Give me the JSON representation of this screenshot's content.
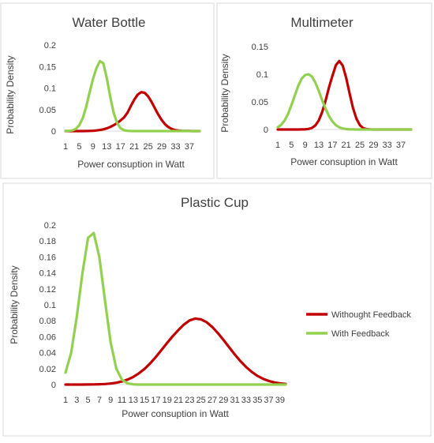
{
  "colors": {
    "without_feedback": "#c00000",
    "with_feedback": "#92d050",
    "axis": "#d9d9d9",
    "text": "#404040"
  },
  "legend": {
    "without_feedback": "Withought Feedback",
    "with_feedback": "With Feedback"
  },
  "chart_data": [
    {
      "type": "line",
      "title": "Water Bottle",
      "xlabel": "Power consuption in Watt",
      "ylabel": "Probability Density",
      "ylim": [
        0,
        0.2
      ],
      "yticks": [
        "0",
        "0.05",
        "0.1",
        "0.15",
        "0.2"
      ],
      "x_tick_labels": [
        "1",
        "5",
        "9",
        "13",
        "17",
        "21",
        "25",
        "29",
        "33",
        "37"
      ],
      "x": [
        1,
        2,
        3,
        4,
        5,
        6,
        7,
        8,
        9,
        10,
        11,
        12,
        13,
        14,
        15,
        16,
        17,
        18,
        19,
        20,
        21,
        22,
        23,
        24,
        25,
        26,
        27,
        28,
        29,
        30,
        31,
        32,
        33,
        34,
        35,
        36,
        37,
        38,
        39,
        40
      ],
      "series": [
        {
          "name": "Withought Feedback",
          "values": [
            0,
            0,
            0,
            0,
            0,
            0,
            0.0002,
            0.0004,
            0.0008,
            0.0014,
            0.0025,
            0.004,
            0.0063,
            0.0095,
            0.0135,
            0.0186,
            0.0246,
            0.0315,
            0.0426,
            0.0582,
            0.0732,
            0.0848,
            0.0905,
            0.089,
            0.0809,
            0.068,
            0.0529,
            0.038,
            0.0252,
            0.0155,
            0.0088,
            0.0046,
            0.0022,
            0.001,
            0.0004,
            0.0002,
            0.0001,
            0,
            0,
            0
          ]
        },
        {
          "name": "With Feedback",
          "values": [
            0.0002,
            0.0005,
            0.0017,
            0.0052,
            0.0135,
            0.0298,
            0.0561,
            0.0896,
            0.1215,
            0.1463,
            0.1625,
            0.1576,
            0.1235,
            0.0796,
            0.0427,
            0.0189,
            0.0069,
            0.002,
            0.0005,
            0.0001,
            0,
            0,
            0,
            0,
            0,
            0,
            0,
            0,
            0,
            0,
            0,
            0,
            0,
            0,
            0,
            0,
            0,
            0,
            0,
            0
          ]
        }
      ]
    },
    {
      "type": "line",
      "title": "Multimeter",
      "xlabel": "Power consuption in Watt",
      "ylabel": "Probability Density",
      "ylim": [
        0,
        0.15
      ],
      "yticks": [
        "0",
        "0.05",
        "0.1",
        "0.15"
      ],
      "x_tick_labels": [
        "1",
        "5",
        "9",
        "13",
        "17",
        "21",
        "25",
        "29",
        "33",
        "37"
      ],
      "x": [
        1,
        2,
        3,
        4,
        5,
        6,
        7,
        8,
        9,
        10,
        11,
        12,
        13,
        14,
        15,
        16,
        17,
        18,
        19,
        20,
        21,
        22,
        23,
        24,
        25,
        26,
        27,
        28,
        29,
        30,
        31,
        32,
        33,
        34,
        35,
        36,
        37,
        38,
        39,
        40
      ],
      "series": [
        {
          "name": "Withought Feedback",
          "values": [
            0,
            0,
            0,
            0,
            0,
            0,
            0,
            0.0001,
            0.0003,
            0.001,
            0.0029,
            0.0074,
            0.0164,
            0.0315,
            0.0527,
            0.0767,
            0.0972,
            0.1166,
            0.1238,
            0.1157,
            0.0935,
            0.0655,
            0.0391,
            0.0196,
            0.008,
            0.0025,
            0.0007,
            0.0002,
            0,
            0,
            0,
            0,
            0,
            0,
            0,
            0,
            0,
            0,
            0,
            0
          ]
        },
        {
          "name": "With Feedback",
          "values": [
            0.004,
            0.0085,
            0.0163,
            0.0282,
            0.044,
            0.062,
            0.079,
            0.0922,
            0.0986,
            0.1,
            0.0957,
            0.0849,
            0.0697,
            0.0529,
            0.0373,
            0.0241,
            0.0144,
            0.0079,
            0.004,
            0.0019,
            0.0008,
            0.0003,
            0.0001,
            0,
            0,
            0,
            0,
            0,
            0,
            0,
            0,
            0,
            0,
            0,
            0,
            0,
            0,
            0,
            0,
            0
          ]
        }
      ]
    },
    {
      "type": "line",
      "title": "Plastic Cup",
      "xlabel": "Power consuption in Watt",
      "ylabel": "Probability Density",
      "ylim": [
        0,
        0.2
      ],
      "yticks": [
        "0",
        "0.02",
        "0.04",
        "0.06",
        "0.08",
        "0.1",
        "0.12",
        "0.14",
        "0.16",
        "0.18",
        "0.2"
      ],
      "x_tick_labels": [
        "1",
        "3",
        "5",
        "7",
        "9",
        "11",
        "13",
        "15",
        "17",
        "19",
        "21",
        "23",
        "25",
        "27",
        "29",
        "31",
        "33",
        "35",
        "37",
        "39"
      ],
      "x": [
        1,
        2,
        3,
        4,
        5,
        6,
        7,
        8,
        9,
        10,
        11,
        12,
        13,
        14,
        15,
        16,
        17,
        18,
        19,
        20,
        21,
        22,
        23,
        24,
        25,
        26,
        27,
        28,
        29,
        30,
        31,
        32,
        33,
        34,
        35,
        36,
        37,
        38,
        39,
        40
      ],
      "legend": "right",
      "series": [
        {
          "name": "Withought Feedback",
          "values": [
            0,
            0,
            0,
            0,
            0.0001,
            0.0002,
            0.0004,
            0.0007,
            0.0013,
            0.0023,
            0.0039,
            0.0062,
            0.0095,
            0.0141,
            0.0197,
            0.0265,
            0.0346,
            0.0434,
            0.0523,
            0.0607,
            0.0684,
            0.0753,
            0.0805,
            0.0828,
            0.0818,
            0.0782,
            0.0722,
            0.0645,
            0.0558,
            0.0466,
            0.0376,
            0.0292,
            0.022,
            0.0158,
            0.0109,
            0.0072,
            0.0046,
            0.0027,
            0.0015,
            0.0008
          ]
        },
        {
          "name": "With Feedback",
          "values": [
            0.015,
            0.04,
            0.085,
            0.14,
            0.184,
            0.19,
            0.16,
            0.105,
            0.053,
            0.02,
            0.006,
            0.0015,
            0.0003,
            0,
            0,
            0,
            0,
            0,
            0,
            0,
            0,
            0,
            0,
            0,
            0,
            0,
            0,
            0,
            0,
            0,
            0,
            0,
            0,
            0,
            0,
            0,
            0,
            0,
            0,
            0
          ]
        }
      ]
    }
  ]
}
